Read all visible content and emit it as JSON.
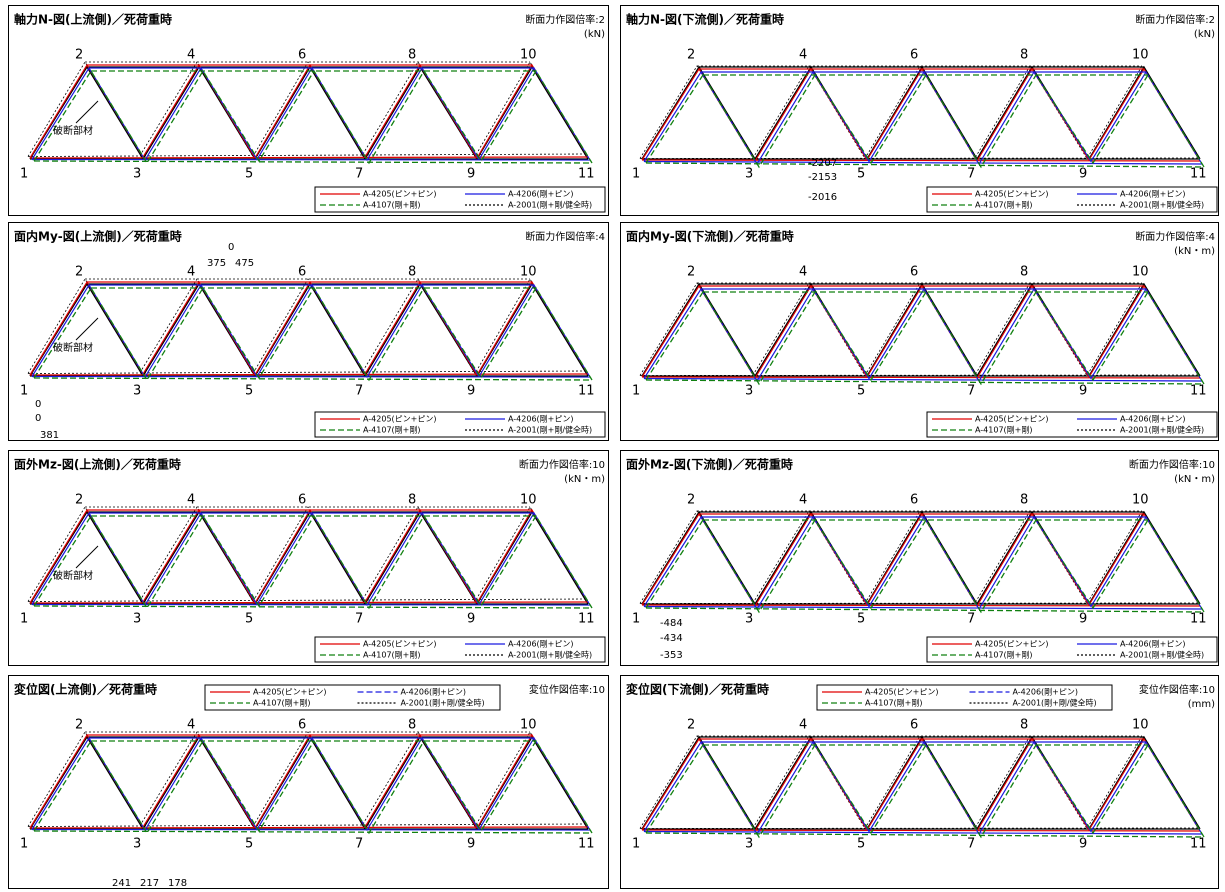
{
  "node_labels": [
    "1",
    "2",
    "3",
    "4",
    "5",
    "6",
    "7",
    "8",
    "9",
    "10",
    "11"
  ],
  "legend": [
    "A-4205(ピン+ピン)",
    "A-4206(剛+ピン)",
    "A-4107(剛+剛)",
    "A-2001(剛+剛/健全時)"
  ],
  "panels": [
    {
      "title": "軸力N-図(上流側)／死荷重時",
      "scale": "断面力作図倍率:2",
      "unit": "(kN)",
      "annotation": "破断部材"
    },
    {
      "title": "軸力N-図(下流側)／死荷重時",
      "scale": "断面力作図倍率:2",
      "unit": "(kN)",
      "value_labels": [
        {
          "text": "-2207",
          "color": "#e00000"
        },
        {
          "text": "-2153",
          "color": "#1a1ae0"
        },
        {
          "text": "-2016",
          "color": "#108010"
        }
      ]
    },
    {
      "title": "面内My-図(上流側)／死荷重時",
      "scale": "断面力作図倍率:4",
      "annotation": "破断部材",
      "value_labels": [
        {
          "text": "0",
          "color": "#e00000"
        },
        {
          "text": "375",
          "color": "#1a1ae0"
        },
        {
          "text": "475",
          "color": "#108010"
        },
        {
          "text": "0",
          "color": "#e00000"
        },
        {
          "text": "0",
          "color": "#1a1ae0"
        },
        {
          "text": "381",
          "color": "#108010"
        }
      ]
    },
    {
      "title": "面内My-図(下流側)／死荷重時",
      "scale": "断面力作図倍率:4",
      "unit": "(kN・m)"
    },
    {
      "title": "面外Mz-図(上流側)／死荷重時",
      "scale": "断面力作図倍率:10",
      "unit": "(kN・m)",
      "annotation": "破断部材"
    },
    {
      "title": "面外Mz-図(下流側)／死荷重時",
      "scale": "断面力作図倍率:10",
      "unit": "(kN・m)",
      "value_labels": [
        {
          "text": "-484",
          "color": "#e00000"
        },
        {
          "text": "-434",
          "color": "#1a1ae0"
        },
        {
          "text": "-353",
          "color": "#108010"
        }
      ]
    },
    {
      "title": "変位図(上流側)／死荷重時",
      "scale": "変位作図倍率:10",
      "value_labels": [
        {
          "text": "241",
          "color": "#e00000"
        },
        {
          "text": "217",
          "color": "#1a1ae0"
        },
        {
          "text": "178",
          "color": "#108010"
        }
      ]
    },
    {
      "title": "変位図(下流側)／死荷重時",
      "scale": "変位作図倍率:10",
      "unit": "(mm)"
    }
  ]
}
